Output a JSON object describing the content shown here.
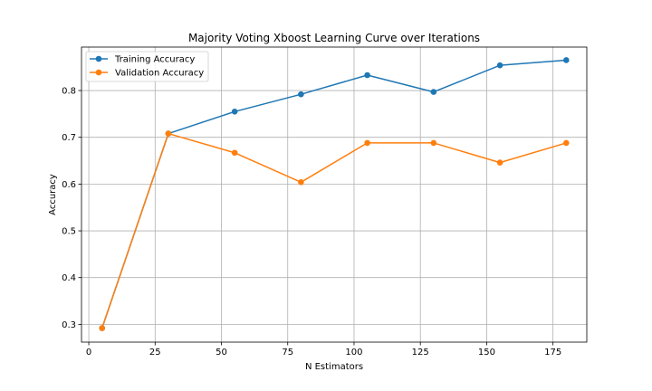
{
  "chart_data": {
    "type": "line",
    "title": "Majority Voting Xboost Learning Curve over Iterations",
    "xlabel": "N Estimators",
    "ylabel": "Accuracy",
    "xlim": [
      -2.75,
      187.75
    ],
    "ylim": [
      0.262,
      0.893
    ],
    "xticks": [
      0,
      25,
      50,
      75,
      100,
      125,
      150,
      175
    ],
    "yticks": [
      0.3,
      0.4,
      0.5,
      0.6,
      0.7,
      0.8
    ],
    "ytick_labels": [
      "0.3",
      "0.4",
      "0.5",
      "0.6",
      "0.7",
      "0.8"
    ],
    "grid": true,
    "legend_position": "top-left",
    "x": [
      5,
      30,
      55,
      80,
      105,
      130,
      155,
      180
    ],
    "series": [
      {
        "name": "Training Accuracy",
        "color": "#1f77b4",
        "values": [
          0.292,
          0.708,
          0.755,
          0.792,
          0.833,
          0.797,
          0.854,
          0.865
        ]
      },
      {
        "name": "Validation Accuracy",
        "color": "#ff7f0e",
        "values": [
          0.292,
          0.708,
          0.667,
          0.604,
          0.688,
          0.688,
          0.646,
          0.688
        ]
      }
    ]
  }
}
